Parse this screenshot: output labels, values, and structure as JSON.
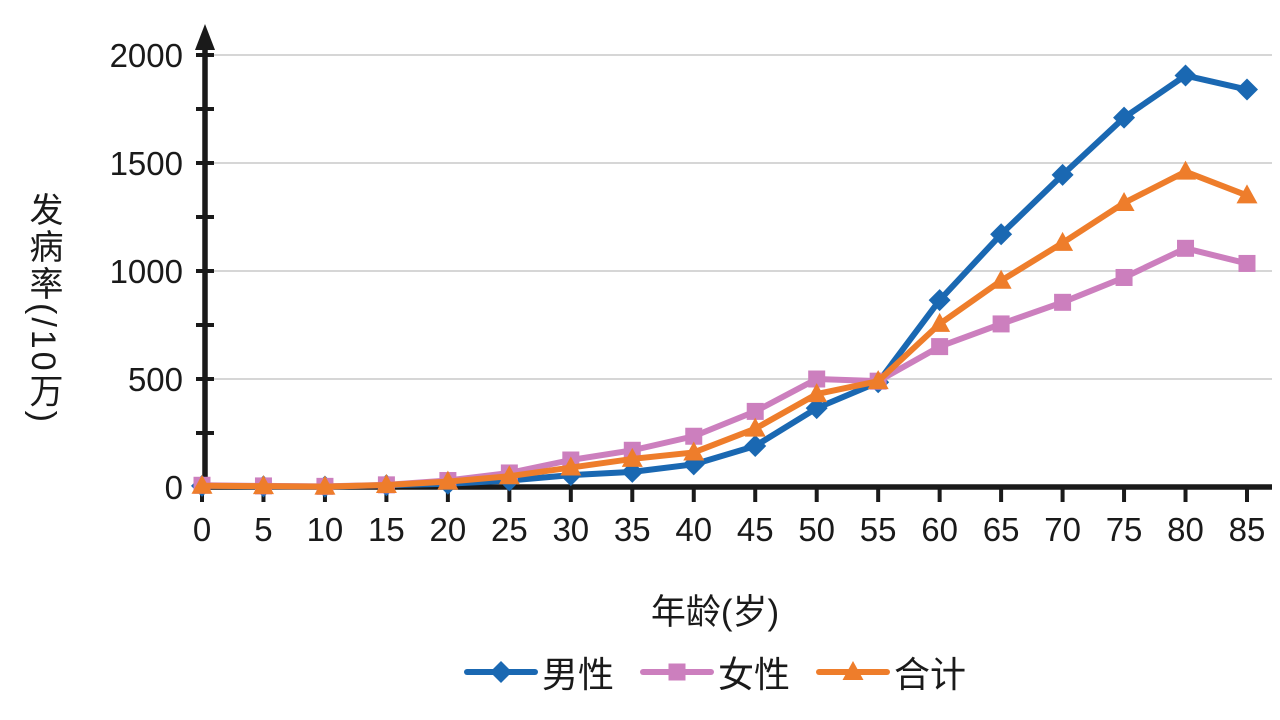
{
  "chart_data": {
    "type": "line",
    "title": "",
    "xlabel": "年龄(岁)",
    "ylabel": "发病率(/10万)",
    "x": [
      0,
      5,
      10,
      15,
      20,
      25,
      30,
      35,
      40,
      45,
      50,
      55,
      60,
      65,
      70,
      75,
      80,
      85
    ],
    "x_tick_labels": [
      "0",
      "5",
      "10",
      "15",
      "20",
      "25",
      "30",
      "35",
      "40",
      "45",
      "50",
      "55",
      "60",
      "65",
      "70",
      "75",
      "80",
      "85"
    ],
    "y_ticks": [
      0,
      500,
      1000,
      1500,
      2000
    ],
    "y_minor_tick_step": 250,
    "ylim": [
      0,
      2150
    ],
    "grid": "horizontal-major",
    "legend_position": "bottom",
    "series": [
      {
        "key": "male",
        "name": "男性",
        "marker": "diamond",
        "color": "#1A68B2",
        "values": [
          5,
          3,
          2,
          8,
          15,
          30,
          55,
          70,
          105,
          190,
          365,
          485,
          865,
          1170,
          1445,
          1710,
          1905,
          1840
        ]
      },
      {
        "key": "female",
        "name": "女性",
        "marker": "square",
        "color": "#CC7FBE",
        "values": [
          8,
          5,
          3,
          10,
          30,
          65,
          125,
          170,
          235,
          350,
          500,
          490,
          650,
          755,
          855,
          970,
          1105,
          1035
        ]
      },
      {
        "key": "total",
        "name": "合计",
        "marker": "triangle",
        "color": "#EE7D2B",
        "values": [
          6,
          4,
          2,
          9,
          25,
          50,
          90,
          130,
          160,
          270,
          430,
          490,
          755,
          955,
          1130,
          1315,
          1460,
          1350
        ]
      }
    ]
  },
  "colors": {
    "background": "#ffffff",
    "axis": "#1a1a1a",
    "grid": "#c8c8c8",
    "text": "#1a1a1a"
  }
}
